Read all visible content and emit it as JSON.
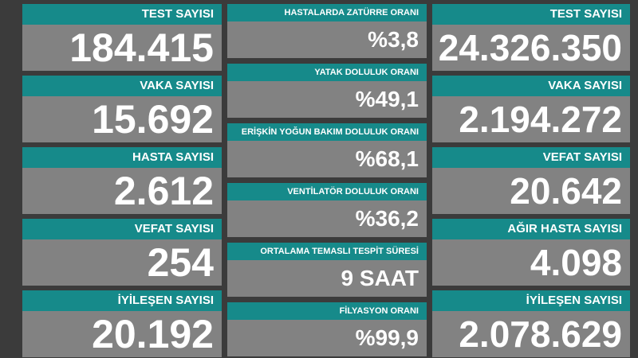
{
  "columns": [
    {
      "cards": [
        {
          "label": "TEST SAYISI",
          "value": "184.415"
        },
        {
          "label": "VAKA SAYISI",
          "value": "15.692"
        },
        {
          "label": "HASTA SAYISI",
          "value": "2.612"
        },
        {
          "label": "VEFAT SAYISI",
          "value": "254"
        },
        {
          "label": "İYİLEŞEN SAYISI",
          "value": "20.192"
        }
      ]
    },
    {
      "cards": [
        {
          "label": "HASTALARDA ZATÜRRE ORANI",
          "value": "%3,8"
        },
        {
          "label": "YATAK DOLULUK ORANI",
          "value": "%49,1"
        },
        {
          "label": "ERİŞKİN YOĞUN BAKIM DOLULUK ORANI",
          "value": "%68,1"
        },
        {
          "label": "VENTİLATÖR DOLULUK ORANI",
          "value": "%36,2"
        },
        {
          "label": "ORTALAMA TEMASLI TESPİT SÜRESİ",
          "value": "9 SAAT"
        },
        {
          "label": "FİLYASYON ORANI",
          "value": "%99,9"
        }
      ]
    },
    {
      "cards": [
        {
          "label": "TEST SAYISI",
          "value": "24.326.350"
        },
        {
          "label": "VAKA SAYISI",
          "value": "2.194.272"
        },
        {
          "label": "VEFAT SAYISI",
          "value": "20.642"
        },
        {
          "label": "AĞIR HASTA SAYISI",
          "value": "4.098"
        },
        {
          "label": "İYİLEŞEN SAYISI",
          "value": "2.078.629"
        }
      ]
    }
  ]
}
